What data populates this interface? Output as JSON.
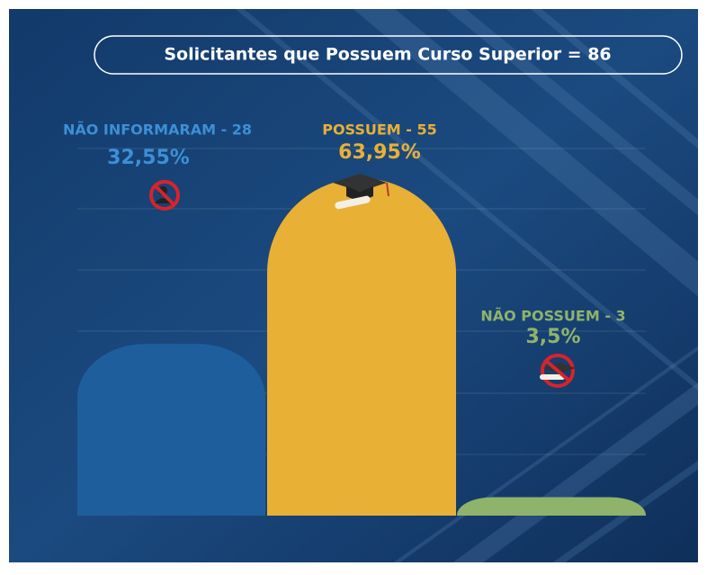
{
  "chart_data": {
    "type": "bar",
    "title": "Solicitantes que Possuem Curso Superior = 86",
    "categories": [
      "NÃO INFORMARAM - 28",
      "POSSUEM - 55",
      "NÃO POSSUEM - 3"
    ],
    "values": [
      32.55,
      63.95,
      3.5
    ],
    "value_labels": [
      "32,55%",
      "63,95%",
      "3,5%"
    ],
    "colors": [
      "#1f5e9c",
      "#e8b035",
      "#8fb36a"
    ],
    "label_colors": [
      "#3d8fd6",
      "#e8b035",
      "#8fb36a"
    ]
  }
}
